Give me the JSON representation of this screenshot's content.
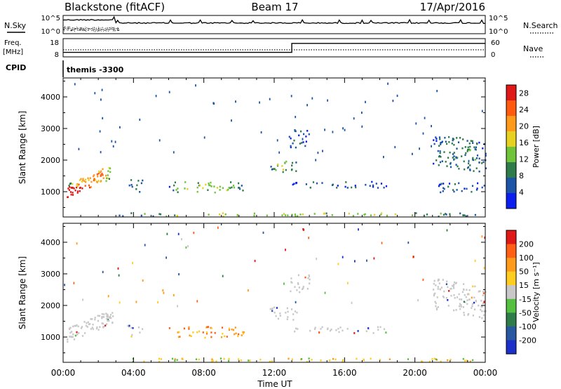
{
  "header": {
    "station": "Blackstone (fitACF)",
    "beam": "Beam 17",
    "date": "17/Apr/2016"
  },
  "noise_panel": {
    "left_label": "N.Sky",
    "right_label": "N.Search",
    "left_ticks": [
      "10^5",
      "10^0"
    ],
    "right_ticks": [
      "10^5",
      "10^0"
    ]
  },
  "freq_panel": {
    "left_label_line1": "Freq.",
    "left_label_line2": "[MHz]",
    "right_label": "Nave",
    "left_ticks": [
      "18",
      "8"
    ],
    "right_ticks": [
      "60",
      "0"
    ],
    "freq_mhz_before": 10,
    "freq_mhz_after": 12.3,
    "switch_time_h": 13.0,
    "nave_value": 22
  },
  "cpid_panel": {
    "label": "CPID",
    "program": "themis -3300"
  },
  "chart_data": [
    {
      "type": "heatmap",
      "panel": "power",
      "ylabel": "Slant Range [km]",
      "xlabel": "Time UT",
      "x_ticks": [
        "00:00",
        "04:00",
        "08:00",
        "12:00",
        "16:00",
        "20:00",
        "00:00"
      ],
      "y_ticks": [
        1000,
        2000,
        3000,
        4000
      ],
      "ylim": [
        200,
        4600
      ],
      "xlim_hours": [
        0,
        24
      ],
      "colorbar_label": "Power [dB]",
      "colorbar_ticks": [
        4,
        8,
        12,
        16,
        20,
        24,
        28
      ],
      "colorbar_range": [
        0,
        30
      ],
      "colorbar_colors": [
        "#0a1ef0",
        "#1c55a8",
        "#2d7c4a",
        "#6fc43a",
        "#e6d020",
        "#ff9a1a",
        "#ff5a10",
        "#e01818"
      ],
      "echo_regions": [
        {
          "t0": 0.2,
          "t1": 2.8,
          "r0": 850,
          "r1": 1900,
          "level": 22,
          "slope": 600
        },
        {
          "t0": 3.6,
          "t1": 4.5,
          "r0": 1000,
          "r1": 1400,
          "level": 6
        },
        {
          "t0": 6.0,
          "t1": 10.3,
          "r0": 1000,
          "r1": 1350,
          "level": 14
        },
        {
          "t0": 11.7,
          "t1": 13.3,
          "r0": 1550,
          "r1": 2000,
          "level": 12
        },
        {
          "t0": 12.8,
          "t1": 14.0,
          "r0": 2400,
          "r1": 3000,
          "level": 5
        },
        {
          "t0": 13.0,
          "t1": 18.5,
          "r0": 1150,
          "r1": 1350,
          "level": 5
        },
        {
          "t0": 21.0,
          "t1": 24.0,
          "r0": 1000,
          "r1": 1300,
          "level": 5
        },
        {
          "t0": 21.0,
          "t1": 24.0,
          "r0": 1600,
          "r1": 2900,
          "level": 8,
          "slope": -300
        },
        {
          "t0": 2.8,
          "t1": 24.0,
          "r0": 200,
          "r1": 350,
          "level": 14
        }
      ]
    },
    {
      "type": "heatmap",
      "panel": "velocity",
      "ylabel": "Slant Range [km]",
      "xlabel": "Time UT",
      "x_ticks": [
        "00:00",
        "04:00",
        "08:00",
        "12:00",
        "16:00",
        "20:00",
        "00:00"
      ],
      "y_ticks": [
        1000,
        2000,
        3000,
        4000
      ],
      "ylim": [
        200,
        4600
      ],
      "xlim_hours": [
        0,
        24
      ],
      "colorbar_label": "Velocity [m s⁻¹]",
      "colorbar_ticks": [
        200,
        100,
        50,
        15,
        -15,
        -50,
        -100,
        -200
      ],
      "colorbar_colors": [
        "#1b30c8",
        "#2858a0",
        "#2d7c4a",
        "#55c040",
        "#c8c8c8",
        "#ffcc20",
        "#ff9a1a",
        "#ff6015",
        "#e01818"
      ],
      "echo_regions": [
        {
          "t0": 0.2,
          "t1": 2.8,
          "r0": 850,
          "r1": 1900,
          "class": "ground",
          "slope": 600
        },
        {
          "t0": 3.6,
          "t1": 4.5,
          "r0": 1000,
          "r1": 1400,
          "class": "ground"
        },
        {
          "t0": 6.0,
          "t1": 10.3,
          "r0": 1000,
          "r1": 1350,
          "class": "negative"
        },
        {
          "t0": 11.7,
          "t1": 13.3,
          "r0": 1550,
          "r1": 2000,
          "class": "ground"
        },
        {
          "t0": 12.8,
          "t1": 14.0,
          "r0": 2400,
          "r1": 3000,
          "class": "ground"
        },
        {
          "t0": 13.0,
          "t1": 18.5,
          "r0": 1150,
          "r1": 1350,
          "class": "ground"
        },
        {
          "t0": 21.0,
          "t1": 24.0,
          "r0": 1600,
          "r1": 2900,
          "class": "ground",
          "slope": -300
        },
        {
          "t0": 2.8,
          "t1": 24.0,
          "r0": 200,
          "r1": 350,
          "class": "mixed"
        }
      ]
    }
  ]
}
